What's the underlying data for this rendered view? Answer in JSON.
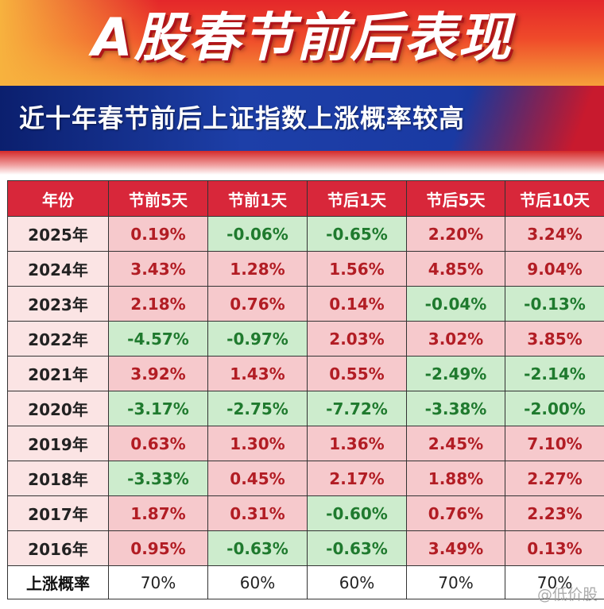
{
  "title": "A股春节前后表现",
  "subtitle": "近十年春节前后上证指数上涨概率较高",
  "colors": {
    "header_bg": "#d8273a",
    "positive_bg": "#f6c9cc",
    "positive_text": "#b21d24",
    "negative_bg": "#cdeccd",
    "negative_text": "#1f7a2e"
  },
  "table": {
    "headers": [
      "年份",
      "节前5天",
      "节前1天",
      "节后1天",
      "节后5天",
      "节后10天"
    ],
    "rows": [
      {
        "year": "2025年",
        "values": [
          "0.19%",
          "-0.06%",
          "-0.65%",
          "2.20%",
          "3.24%"
        ]
      },
      {
        "year": "2024年",
        "values": [
          "3.43%",
          "1.28%",
          "1.56%",
          "4.85%",
          "9.04%"
        ]
      },
      {
        "year": "2023年",
        "values": [
          "2.18%",
          "0.76%",
          "0.14%",
          "-0.04%",
          "-0.13%"
        ]
      },
      {
        "year": "2022年",
        "values": [
          "-4.57%",
          "-0.97%",
          "2.03%",
          "3.02%",
          "3.85%"
        ]
      },
      {
        "year": "2021年",
        "values": [
          "3.92%",
          "1.43%",
          "0.55%",
          "-2.49%",
          "-2.14%"
        ]
      },
      {
        "year": "2020年",
        "values": [
          "-3.17%",
          "-2.75%",
          "-7.72%",
          "-3.38%",
          "-2.00%"
        ]
      },
      {
        "year": "2019年",
        "values": [
          "0.63%",
          "1.30%",
          "1.36%",
          "2.45%",
          "7.10%"
        ]
      },
      {
        "year": "2018年",
        "values": [
          "-3.33%",
          "0.45%",
          "2.17%",
          "1.88%",
          "2.27%"
        ]
      },
      {
        "year": "2017年",
        "values": [
          "1.87%",
          "0.31%",
          "-0.60%",
          "0.76%",
          "2.23%"
        ]
      },
      {
        "year": "2016年",
        "values": [
          "0.95%",
          "-0.63%",
          "-0.63%",
          "3.49%",
          "0.13%"
        ]
      }
    ],
    "rate_row": {
      "label": "上涨概率",
      "values": [
        "70%",
        "60%",
        "60%",
        "70%",
        "70%"
      ]
    }
  },
  "watermark": "@低价股"
}
